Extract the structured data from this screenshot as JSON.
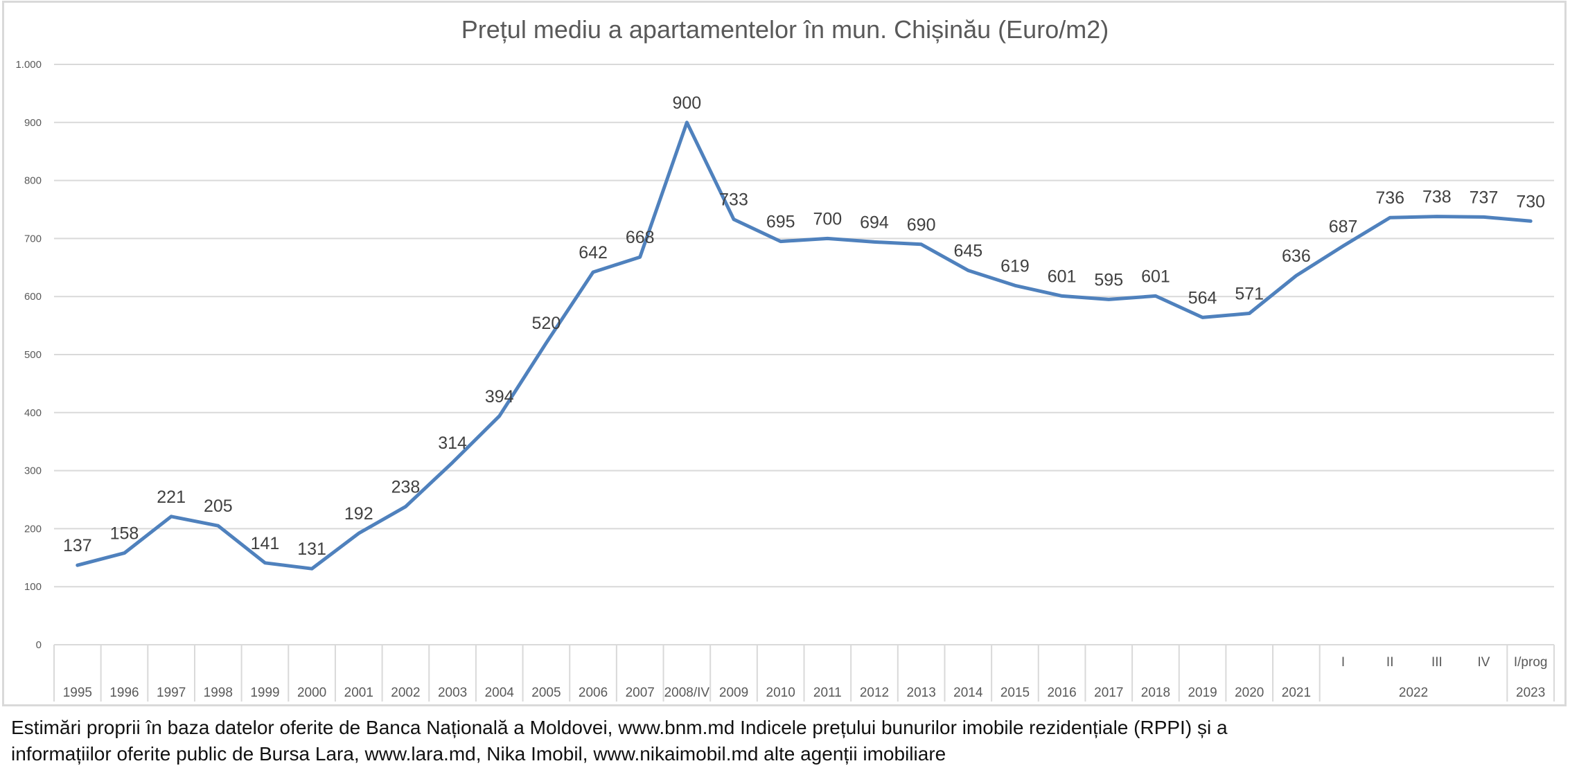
{
  "chart_data": {
    "type": "line",
    "title": "Prețul mediu a apartamentelor în mun. Chișinău (Euro/m2)",
    "xlabel": "",
    "ylabel": "",
    "ylim": [
      0,
      1000
    ],
    "yticks": [
      0,
      100,
      200,
      300,
      400,
      500,
      600,
      700,
      800,
      900,
      1000
    ],
    "ytick_labels": [
      "0",
      "100",
      "200",
      "300",
      "400",
      "500",
      "600",
      "700",
      "800",
      "900",
      "1.000"
    ],
    "grid": true,
    "legend": "none",
    "line_color": "#4f81bd",
    "categories": [
      "1995",
      "1996",
      "1997",
      "1998",
      "1999",
      "2000",
      "2001",
      "2002",
      "2003",
      "2004",
      "2005",
      "2006",
      "2007",
      "2008/IV",
      "2009",
      "2010",
      "2011",
      "2012",
      "2013",
      "2014",
      "2015",
      "2016",
      "2017",
      "2018",
      "2019",
      "2020",
      "2021",
      "I",
      "II",
      "III",
      "IV",
      "I/prog"
    ],
    "category_groups": [
      {
        "label": "2022",
        "members": [
          "I",
          "II",
          "III",
          "IV"
        ]
      },
      {
        "label": "2023",
        "members": [
          "I/prog"
        ]
      }
    ],
    "series": [
      {
        "name": "Prețul mediu (Euro/m2)",
        "values": [
          137,
          158,
          221,
          205,
          141,
          131,
          192,
          238,
          314,
          394,
          520,
          642,
          668,
          900,
          733,
          695,
          700,
          694,
          690,
          645,
          619,
          601,
          595,
          601,
          564,
          571,
          636,
          687,
          736,
          738,
          737,
          730
        ],
        "data_labels": [
          "137",
          "158",
          "221",
          "205",
          "141",
          "131",
          "192",
          "238",
          "314",
          "394",
          "520",
          "642",
          "668",
          "900",
          "733",
          "695",
          "700",
          "694",
          "690",
          "645",
          "619",
          "601",
          "595",
          "601",
          "564",
          "571",
          "636",
          "687",
          "736",
          "738",
          "737",
          "730"
        ]
      }
    ]
  },
  "footer": {
    "line1": "Estimări proprii în baza datelor oferite de Banca Națională a Moldovei, www.bnm.md Indicele prețului bunurilor imobile rezidențiale (RPPI) și a",
    "line2": "informațiilor oferite public de Bursa Lara, www.lara.md, Nika Imobil, www.nikaimobil.md alte agenții imobiliare"
  }
}
